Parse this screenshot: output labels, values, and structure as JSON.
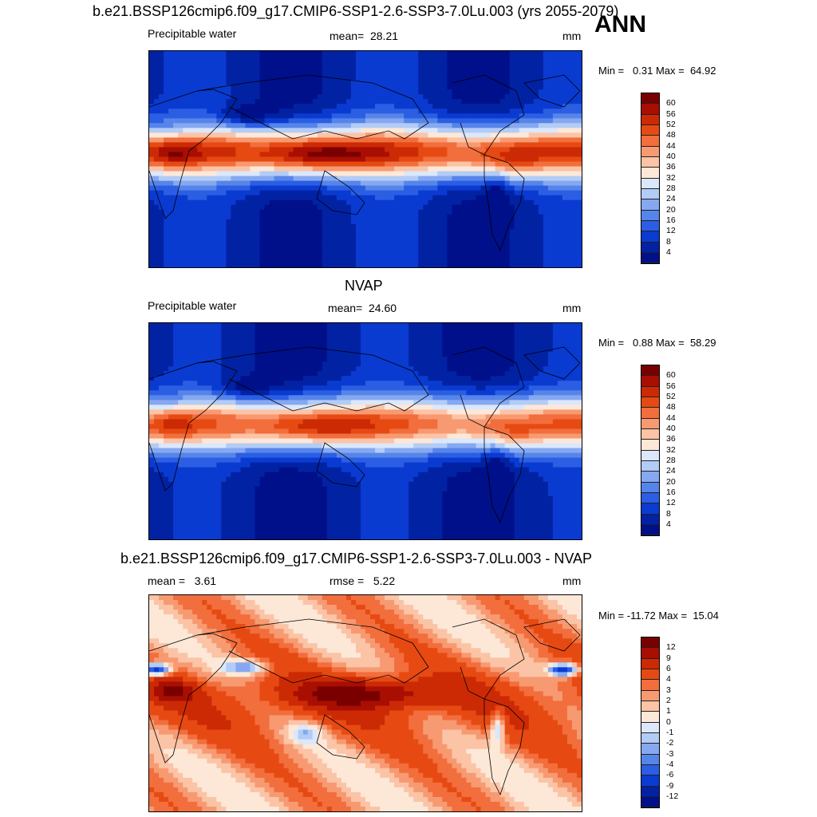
{
  "figure": {
    "title": "b.e21.BSSP126cmip6.f09_g17.CMIP6-SSP1-2.6-SSP3-7.0Lu.003 (yrs 2055-2079)",
    "season": "ANN"
  },
  "panel1": {
    "variable": "Precipitable water",
    "mean_label": "mean=",
    "mean_value": "28.21",
    "units": "mm",
    "min_label": "Min =",
    "min_value": "0.31",
    "max_label": "Max =",
    "max_value": "64.92",
    "colorbar_ticks": [
      "60",
      "56",
      "52",
      "48",
      "44",
      "40",
      "36",
      "32",
      "28",
      "24",
      "20",
      "16",
      "12",
      "8",
      "4"
    ],
    "colors": [
      "#7a0000",
      "#a80e02",
      "#cc2a05",
      "#e64a12",
      "#f26e3c",
      "#f79a72",
      "#fbc4a6",
      "#fde8d8",
      "#dbe7fb",
      "#b3ccf6",
      "#86a8f0",
      "#5685ea",
      "#2b5ee3",
      "#0a3bd1",
      "#0222a4",
      "#00108a"
    ]
  },
  "panel2": {
    "heading": "NVAP",
    "variable": "Precipitable water",
    "mean_label": "mean=",
    "mean_value": "24.60",
    "units": "mm",
    "min_label": "Min =",
    "min_value": "0.88",
    "max_label": "Max =",
    "max_value": "58.29",
    "colorbar_ticks": [
      "60",
      "56",
      "52",
      "48",
      "44",
      "40",
      "36",
      "32",
      "28",
      "24",
      "20",
      "16",
      "12",
      "8",
      "4"
    ],
    "colors": [
      "#7a0000",
      "#a80e02",
      "#cc2a05",
      "#e64a12",
      "#f26e3c",
      "#f79a72",
      "#fbc4a6",
      "#fde8d8",
      "#dbe7fb",
      "#b3ccf6",
      "#86a8f0",
      "#5685ea",
      "#2b5ee3",
      "#0a3bd1",
      "#0222a4",
      "#00108a"
    ]
  },
  "panel3": {
    "heading": "b.e21.BSSP126cmip6.f09_g17.CMIP6-SSP1-2.6-SSP3-7.0Lu.003 - NVAP",
    "mean_label": "mean =",
    "mean_value": "3.61",
    "rmse_label": "rmse =",
    "rmse_value": "5.22",
    "units": "mm",
    "min_label": "Min =",
    "min_value": "-11.72",
    "max_label": "Max =",
    "max_value": "15.04",
    "colorbar_ticks": [
      "12",
      "9",
      "6",
      "4",
      "3",
      "2",
      "1",
      "0",
      "-1",
      "-2",
      "-3",
      "-4",
      "-6",
      "-9",
      "-12"
    ],
    "colors": [
      "#7a0000",
      "#a80e02",
      "#cc2a05",
      "#e64a12",
      "#f26e3c",
      "#f79a72",
      "#fbc4a6",
      "#fde8d8",
      "#dbe7fb",
      "#b3ccf6",
      "#86a8f0",
      "#5685ea",
      "#2b5ee3",
      "#0a3bd1",
      "#0222a4",
      "#00108a"
    ]
  }
}
